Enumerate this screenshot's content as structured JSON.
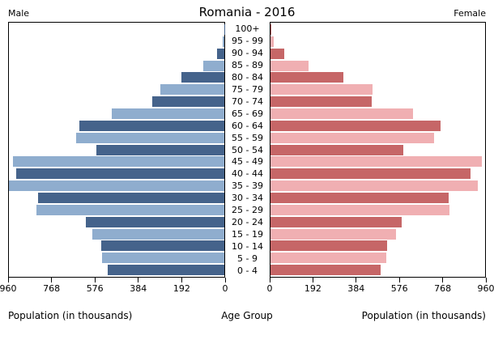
{
  "chart_data": {
    "type": "bar",
    "subtype": "population-pyramid",
    "title": "Romania - 2016",
    "left_header": "Male",
    "right_header": "Female",
    "xlabel_left": "Population (in thousands)",
    "xlabel_center": "Age Group",
    "xlabel_right": "Population (in thousands)",
    "age_groups": [
      "100+",
      "95 - 99",
      "90 - 94",
      "85 - 89",
      "80 - 84",
      "75 - 79",
      "70 - 74",
      "65 - 69",
      "60 - 64",
      "55 - 59",
      "50 - 54",
      "45 - 49",
      "40 - 44",
      "35 - 39",
      "30 - 34",
      "25 - 29",
      "20 - 24",
      "15 - 19",
      "10 - 14",
      "5 - 9",
      "0 - 4"
    ],
    "series": [
      {
        "name": "Male",
        "values": [
          1,
          7,
          33,
          93,
          192,
          285,
          323,
          500,
          645,
          659,
          572,
          941,
          927,
          965,
          829,
          836,
          617,
          589,
          549,
          546,
          519
        ]
      },
      {
        "name": "Female",
        "values": [
          4,
          14,
          61,
          169,
          326,
          458,
          453,
          637,
          760,
          730,
          594,
          946,
          893,
          929,
          796,
          801,
          587,
          560,
          522,
          517,
          494
        ]
      }
    ],
    "xlim": [
      0,
      960
    ],
    "axis_ticks": [
      0,
      192,
      384,
      576,
      768,
      960
    ],
    "grid": false,
    "legend_position": "none",
    "colors": {
      "male_dark": "#45638B",
      "male_light": "#8FADCE",
      "female_dark": "#C66667",
      "female_light": "#F0AFB2",
      "border": "#000000",
      "background": "#FFFFFF"
    }
  }
}
